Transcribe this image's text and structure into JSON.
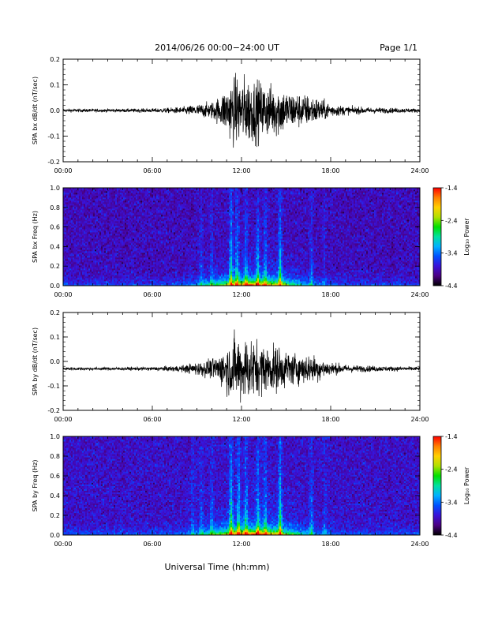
{
  "header": {
    "title": "2014/06/26  00:00−24:00 UT",
    "page": "Page 1/1"
  },
  "footer": {
    "xlabel": "Universal Time (hh:mm)"
  },
  "chart_data": [
    {
      "type": "line",
      "ylabel": "SPA bx dB/dt (nT/sec)",
      "xlim": [
        0,
        24
      ],
      "ylim": [
        -0.2,
        0.2
      ],
      "x_ticks": [
        "00:00",
        "06:00",
        "12:00",
        "18:00",
        "24:00"
      ],
      "y_ticks": [
        "-0.2",
        "-0.1",
        "0.0",
        "0.1",
        "0.2"
      ],
      "baseline": 0.0,
      "envelope": {
        "hours": [
          0,
          2,
          4,
          6,
          7,
          8,
          9,
          10,
          10.5,
          11,
          11.5,
          12,
          12.5,
          13,
          13.5,
          14,
          14.5,
          15,
          15.5,
          16,
          16.5,
          17,
          17.5,
          18,
          19,
          20,
          22,
          24
        ],
        "amplitude": [
          0.01,
          0.01,
          0.01,
          0.012,
          0.015,
          0.02,
          0.035,
          0.05,
          0.08,
          0.14,
          0.2,
          0.2,
          0.2,
          0.18,
          0.16,
          0.15,
          0.16,
          0.12,
          0.11,
          0.1,
          0.09,
          0.08,
          0.06,
          0.04,
          0.025,
          0.02,
          0.015,
          0.012
        ]
      }
    },
    {
      "type": "heatmap",
      "ylabel": "SPA bx Freq (Hz)",
      "xlim": [
        0,
        24
      ],
      "ylim": [
        0.0,
        1.0
      ],
      "x_ticks": [
        "00:00",
        "06:00",
        "12:00",
        "18:00",
        "24:00"
      ],
      "y_ticks": [
        "0.0",
        "0.2",
        "0.4",
        "0.6",
        "0.8",
        "1.0"
      ],
      "colorbar": {
        "label": "Log₁₀ Power",
        "range": [
          -4.4,
          -1.4
        ],
        "ticks": [
          "-1.4",
          "-2.4",
          "-3.4",
          "-4.4"
        ],
        "colors": [
          "#000000",
          "#4b0082",
          "#3a12d8",
          "#0050ff",
          "#00b0ff",
          "#00e0a0",
          "#00e000",
          "#b0e000",
          "#ffd000",
          "#ff8000",
          "#ff0000"
        ]
      },
      "background_power": -3.9,
      "bursts": [
        {
          "hour": 9.3,
          "strength": 0.18
        },
        {
          "hour": 10.0,
          "strength": 0.2
        },
        {
          "hour": 11.3,
          "strength": 0.55
        },
        {
          "hour": 11.7,
          "strength": 0.45
        },
        {
          "hour": 12.3,
          "strength": 0.35
        },
        {
          "hour": 13.1,
          "strength": 0.4
        },
        {
          "hour": 13.6,
          "strength": 0.3
        },
        {
          "hour": 14.6,
          "strength": 0.55
        },
        {
          "hour": 16.7,
          "strength": 0.25
        },
        {
          "hour": 17.6,
          "strength": 0.15
        }
      ]
    },
    {
      "type": "line",
      "ylabel": "SPA by dB/dt (nT/sec)",
      "xlim": [
        0,
        24
      ],
      "ylim": [
        -0.2,
        0.2
      ],
      "x_ticks": [
        "00:00",
        "06:00",
        "12:00",
        "18:00",
        "24:00"
      ],
      "y_ticks": [
        "-0.2",
        "-0.1",
        "0.0",
        "0.1",
        "0.2"
      ],
      "baseline": -0.03,
      "envelope": {
        "hours": [
          0,
          2,
          4,
          6,
          7,
          8,
          8.5,
          9,
          10,
          10.5,
          11,
          11.5,
          12,
          12.5,
          13,
          13.5,
          14,
          14.5,
          15,
          15.5,
          16,
          16.5,
          17,
          17.5,
          18,
          19,
          20,
          22,
          24
        ],
        "amplitude": [
          0.01,
          0.01,
          0.01,
          0.012,
          0.015,
          0.02,
          0.03,
          0.04,
          0.06,
          0.09,
          0.14,
          0.2,
          0.2,
          0.2,
          0.17,
          0.15,
          0.14,
          0.14,
          0.11,
          0.1,
          0.09,
          0.09,
          0.08,
          0.06,
          0.04,
          0.025,
          0.02,
          0.015,
          0.012
        ]
      }
    },
    {
      "type": "heatmap",
      "ylabel": "SPA by Freq (Hz)",
      "xlim": [
        0,
        24
      ],
      "ylim": [
        0.0,
        1.0
      ],
      "x_ticks": [
        "00:00",
        "06:00",
        "12:00",
        "18:00",
        "24:00"
      ],
      "y_ticks": [
        "0.0",
        "0.2",
        "0.4",
        "0.6",
        "0.8",
        "1.0"
      ],
      "colorbar": {
        "label": "Log₁₀ Power",
        "range": [
          -4.4,
          -1.4
        ],
        "ticks": [
          "-1.4",
          "-2.4",
          "-3.4",
          "-4.4"
        ],
        "colors": [
          "#000000",
          "#4b0082",
          "#3a12d8",
          "#0050ff",
          "#00b0ff",
          "#00e0a0",
          "#00e000",
          "#b0e000",
          "#ffd000",
          "#ff8000",
          "#ff0000"
        ]
      },
      "background_power": -3.85,
      "bursts": [
        {
          "hour": 8.7,
          "strength": 0.2
        },
        {
          "hour": 9.3,
          "strength": 0.22
        },
        {
          "hour": 10.0,
          "strength": 0.25
        },
        {
          "hour": 11.3,
          "strength": 0.6
        },
        {
          "hour": 11.8,
          "strength": 0.5
        },
        {
          "hour": 12.3,
          "strength": 0.4
        },
        {
          "hour": 13.1,
          "strength": 0.45
        },
        {
          "hour": 13.6,
          "strength": 0.35
        },
        {
          "hour": 14.6,
          "strength": 0.6
        },
        {
          "hour": 16.7,
          "strength": 0.3
        },
        {
          "hour": 17.6,
          "strength": 0.2
        }
      ]
    }
  ]
}
